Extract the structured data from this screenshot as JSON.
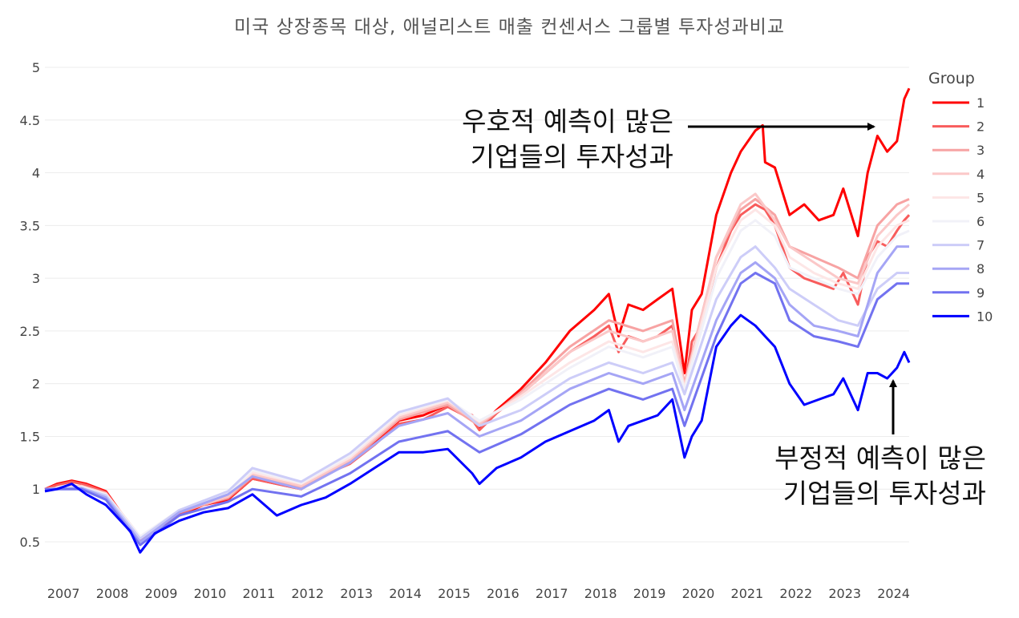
{
  "chart_data": {
    "type": "line",
    "title": "미국 상장종목 대상, 애널리스트 매출 컨센서스 그룹별 투자성과비교",
    "xlabel": "",
    "ylabel": "",
    "xlim": [
      2006.75,
      2024.45
    ],
    "ylim": [
      0.3,
      5.0
    ],
    "yticks": [
      "0.5",
      "1",
      "1.5",
      "2",
      "2.5",
      "3",
      "3.5",
      "4",
      "4.5",
      "5"
    ],
    "xticks": [
      "2007",
      "2008",
      "2009",
      "2010",
      "2011",
      "2012",
      "2013",
      "2014",
      "2015",
      "2016",
      "2017",
      "2018",
      "2019",
      "2020",
      "2021",
      "2022",
      "2023",
      "2024"
    ],
    "grid": true,
    "legend": {
      "title": "Group",
      "placement": "right"
    },
    "series": [
      {
        "name": "1",
        "color": "#ff0000",
        "x": [
          2006.75,
          2007.0,
          2007.3,
          2007.6,
          2008.0,
          2008.5,
          2008.7,
          2009.0,
          2009.5,
          2010.0,
          2010.5,
          2011.0,
          2011.5,
          2012.0,
          2012.5,
          2013.0,
          2013.5,
          2014.0,
          2014.5,
          2015.0,
          2015.5,
          2015.65,
          2016.0,
          2016.5,
          2017.0,
          2017.5,
          2018.0,
          2018.3,
          2018.5,
          2018.7,
          2019.0,
          2019.3,
          2019.6,
          2019.85,
          2020.0,
          2020.2,
          2020.5,
          2020.8,
          2021.0,
          2021.3,
          2021.45,
          2021.5,
          2021.7,
          2022.0,
          2022.3,
          2022.6,
          2022.9,
          2023.1,
          2023.4,
          2023.6,
          2023.8,
          2024.0,
          2024.2,
          2024.35,
          2024.45
        ],
        "y": [
          1.0,
          1.05,
          1.08,
          1.05,
          0.98,
          0.65,
          0.52,
          0.62,
          0.75,
          0.85,
          0.9,
          1.1,
          1.05,
          1.0,
          1.15,
          1.25,
          1.45,
          1.65,
          1.7,
          1.8,
          1.7,
          1.58,
          1.75,
          1.95,
          2.2,
          2.5,
          2.7,
          2.85,
          2.45,
          2.75,
          2.7,
          2.8,
          2.9,
          2.1,
          2.7,
          2.85,
          3.6,
          4.0,
          4.2,
          4.4,
          4.45,
          4.1,
          4.05,
          3.6,
          3.7,
          3.55,
          3.6,
          3.85,
          3.4,
          4.0,
          4.35,
          4.2,
          4.3,
          4.7,
          4.8
        ]
      },
      {
        "name": "2",
        "color": "#f85c5c",
        "x": [
          2006.75,
          2007.0,
          2007.3,
          2007.6,
          2008.0,
          2008.5,
          2008.7,
          2009.0,
          2009.5,
          2010.0,
          2010.5,
          2011.0,
          2011.5,
          2012.0,
          2012.5,
          2013.0,
          2013.5,
          2014.0,
          2014.5,
          2015.0,
          2015.5,
          2015.65,
          2016.0,
          2016.5,
          2017.0,
          2017.5,
          2018.0,
          2018.3,
          2018.5,
          2018.7,
          2019.0,
          2019.3,
          2019.6,
          2019.85,
          2020.0,
          2020.2,
          2020.5,
          2020.8,
          2021.0,
          2021.3,
          2021.5,
          2021.7,
          2022.0,
          2022.3,
          2022.6,
          2022.9,
          2023.1,
          2023.4,
          2023.6,
          2023.8,
          2024.0,
          2024.2,
          2024.35,
          2024.45
        ],
        "y": [
          1.0,
          1.04,
          1.07,
          1.04,
          0.97,
          0.65,
          0.53,
          0.63,
          0.76,
          0.86,
          0.91,
          1.1,
          1.05,
          1.0,
          1.14,
          1.24,
          1.42,
          1.62,
          1.66,
          1.78,
          1.66,
          1.56,
          1.72,
          1.9,
          2.1,
          2.3,
          2.45,
          2.55,
          2.3,
          2.45,
          2.4,
          2.45,
          2.55,
          1.95,
          2.4,
          2.55,
          3.1,
          3.45,
          3.6,
          3.7,
          3.65,
          3.5,
          3.1,
          3.0,
          2.95,
          2.9,
          3.05,
          2.75,
          3.2,
          3.35,
          3.3,
          3.45,
          3.55,
          3.6
        ]
      },
      {
        "name": "3",
        "color": "#f7a3a3",
        "x": [
          2006.75,
          2007.5,
          2008.0,
          2008.7,
          2009.5,
          2010.5,
          2011.0,
          2012.0,
          2013.0,
          2014.0,
          2015.0,
          2015.65,
          2016.5,
          2017.5,
          2018.3,
          2019.0,
          2019.6,
          2019.85,
          2020.5,
          2021.0,
          2021.3,
          2021.7,
          2022.0,
          2022.5,
          2023.0,
          2023.4,
          2023.8,
          2024.2,
          2024.45
        ],
        "y": [
          1.0,
          1.03,
          0.96,
          0.54,
          0.78,
          0.92,
          1.12,
          1.02,
          1.26,
          1.66,
          1.8,
          1.6,
          1.92,
          2.35,
          2.6,
          2.5,
          2.6,
          2.0,
          3.2,
          3.65,
          3.75,
          3.6,
          3.3,
          3.2,
          3.1,
          3.0,
          3.5,
          3.7,
          3.75
        ]
      },
      {
        "name": "4",
        "color": "#fbc8c8",
        "x": [
          2006.75,
          2007.5,
          2008.0,
          2008.7,
          2009.5,
          2010.5,
          2011.0,
          2012.0,
          2013.0,
          2014.0,
          2015.0,
          2015.65,
          2016.5,
          2017.5,
          2018.3,
          2019.0,
          2019.6,
          2019.85,
          2020.5,
          2021.0,
          2021.3,
          2021.7,
          2022.0,
          2022.5,
          2023.0,
          2023.4,
          2023.8,
          2024.2,
          2024.45
        ],
        "y": [
          1.0,
          1.03,
          0.96,
          0.55,
          0.79,
          0.93,
          1.14,
          1.03,
          1.28,
          1.68,
          1.82,
          1.62,
          1.9,
          2.3,
          2.5,
          2.4,
          2.5,
          1.98,
          3.2,
          3.7,
          3.8,
          3.55,
          3.3,
          3.15,
          3.0,
          2.95,
          3.4,
          3.6,
          3.7
        ]
      },
      {
        "name": "5",
        "color": "#fde6e6",
        "x": [
          2006.75,
          2007.5,
          2008.0,
          2008.7,
          2009.5,
          2010.5,
          2011.0,
          2012.0,
          2013.0,
          2014.0,
          2015.0,
          2015.65,
          2016.5,
          2017.5,
          2018.3,
          2019.0,
          2019.6,
          2019.85,
          2020.5,
          2021.0,
          2021.3,
          2021.7,
          2022.0,
          2022.5,
          2023.0,
          2023.4,
          2023.8,
          2024.2,
          2024.45
        ],
        "y": [
          1.0,
          1.02,
          0.95,
          0.55,
          0.8,
          0.95,
          1.16,
          1.05,
          1.3,
          1.7,
          1.84,
          1.64,
          1.88,
          2.2,
          2.4,
          2.3,
          2.4,
          1.96,
          3.1,
          3.55,
          3.65,
          3.5,
          3.2,
          3.05,
          2.95,
          2.9,
          3.3,
          3.5,
          3.55
        ]
      },
      {
        "name": "6",
        "color": "#f1f1f8",
        "x": [
          2006.75,
          2007.5,
          2008.0,
          2008.7,
          2009.5,
          2010.5,
          2011.0,
          2012.0,
          2013.0,
          2014.0,
          2015.0,
          2015.65,
          2016.5,
          2017.5,
          2018.3,
          2019.0,
          2019.6,
          2019.85,
          2020.5,
          2021.0,
          2021.3,
          2021.7,
          2022.0,
          2022.5,
          2023.0,
          2023.4,
          2023.8,
          2024.2,
          2024.45
        ],
        "y": [
          1.0,
          1.02,
          0.95,
          0.55,
          0.8,
          0.96,
          1.18,
          1.06,
          1.32,
          1.72,
          1.85,
          1.65,
          1.85,
          2.15,
          2.35,
          2.25,
          2.35,
          1.94,
          3.0,
          3.45,
          3.55,
          3.4,
          3.1,
          3.0,
          2.9,
          2.85,
          3.2,
          3.4,
          3.45
        ]
      },
      {
        "name": "7",
        "color": "#cdcdf8",
        "x": [
          2006.75,
          2007.5,
          2008.0,
          2008.7,
          2009.5,
          2010.5,
          2011.0,
          2012.0,
          2013.0,
          2014.0,
          2015.0,
          2015.65,
          2016.5,
          2017.5,
          2018.3,
          2019.0,
          2019.6,
          2019.85,
          2020.5,
          2021.0,
          2021.3,
          2021.7,
          2022.0,
          2022.5,
          2023.0,
          2023.4,
          2023.8,
          2024.2,
          2024.45
        ],
        "y": [
          1.0,
          1.01,
          0.94,
          0.53,
          0.8,
          0.98,
          1.2,
          1.07,
          1.34,
          1.73,
          1.86,
          1.6,
          1.75,
          2.05,
          2.2,
          2.1,
          2.2,
          1.9,
          2.8,
          3.2,
          3.3,
          3.1,
          2.9,
          2.75,
          2.6,
          2.55,
          2.9,
          3.05,
          3.05
        ]
      },
      {
        "name": "8",
        "color": "#a5a5f5",
        "x": [
          2006.75,
          2007.5,
          2008.0,
          2008.7,
          2009.5,
          2010.5,
          2011.0,
          2012.0,
          2013.0,
          2014.0,
          2015.0,
          2015.65,
          2016.5,
          2017.5,
          2018.3,
          2019.0,
          2019.6,
          2019.85,
          2020.5,
          2021.0,
          2021.3,
          2021.7,
          2022.0,
          2022.5,
          2023.0,
          2023.4,
          2023.8,
          2024.2,
          2024.45
        ],
        "y": [
          1.0,
          1.01,
          0.92,
          0.5,
          0.78,
          0.95,
          1.12,
          1.0,
          1.25,
          1.6,
          1.72,
          1.5,
          1.65,
          1.95,
          2.1,
          2.0,
          2.1,
          1.75,
          2.6,
          3.05,
          3.15,
          3.0,
          2.75,
          2.55,
          2.5,
          2.45,
          3.05,
          3.3,
          3.3
        ]
      },
      {
        "name": "9",
        "color": "#7272f0",
        "x": [
          2006.75,
          2007.5,
          2008.0,
          2008.7,
          2009.5,
          2010.5,
          2011.0,
          2012.0,
          2013.0,
          2014.0,
          2015.0,
          2015.65,
          2016.5,
          2017.5,
          2018.3,
          2019.0,
          2019.6,
          2019.85,
          2020.5,
          2021.0,
          2021.3,
          2021.7,
          2022.0,
          2022.5,
          2023.0,
          2023.4,
          2023.8,
          2024.2,
          2024.45
        ],
        "y": [
          1.0,
          1.0,
          0.9,
          0.47,
          0.75,
          0.88,
          1.0,
          0.93,
          1.15,
          1.45,
          1.55,
          1.35,
          1.52,
          1.8,
          1.95,
          1.85,
          1.95,
          1.6,
          2.45,
          2.95,
          3.05,
          2.95,
          2.6,
          2.45,
          2.4,
          2.35,
          2.8,
          2.95,
          2.95
        ]
      },
      {
        "name": "10",
        "color": "#0000ff",
        "x": [
          2006.75,
          2007.0,
          2007.3,
          2007.6,
          2008.0,
          2008.5,
          2008.7,
          2009.0,
          2009.5,
          2010.0,
          2010.5,
          2011.0,
          2011.5,
          2012.0,
          2012.5,
          2013.0,
          2013.5,
          2014.0,
          2014.5,
          2015.0,
          2015.5,
          2015.65,
          2016.0,
          2016.5,
          2017.0,
          2017.5,
          2018.0,
          2018.3,
          2018.5,
          2018.7,
          2019.0,
          2019.3,
          2019.6,
          2019.85,
          2020.0,
          2020.2,
          2020.5,
          2020.8,
          2021.0,
          2021.3,
          2021.5,
          2021.7,
          2022.0,
          2022.3,
          2022.6,
          2022.9,
          2023.1,
          2023.4,
          2023.6,
          2023.8,
          2024.0,
          2024.2,
          2024.35,
          2024.45
        ],
        "y": [
          0.98,
          1.0,
          1.05,
          0.95,
          0.85,
          0.6,
          0.4,
          0.58,
          0.7,
          0.78,
          0.82,
          0.95,
          0.75,
          0.85,
          0.92,
          1.05,
          1.2,
          1.35,
          1.35,
          1.38,
          1.15,
          1.05,
          1.2,
          1.3,
          1.45,
          1.55,
          1.65,
          1.75,
          1.45,
          1.6,
          1.65,
          1.7,
          1.85,
          1.3,
          1.5,
          1.65,
          2.35,
          2.55,
          2.65,
          2.55,
          2.45,
          2.35,
          2.0,
          1.8,
          1.85,
          1.9,
          2.05,
          1.75,
          2.1,
          2.1,
          2.05,
          2.15,
          2.3,
          2.2
        ]
      }
    ],
    "annotations": [
      {
        "lines": [
          "우호적 예측이 많은",
          "기업들의 투자성과"
        ]
      },
      {
        "lines": [
          "부정적 예측이 많은",
          "기업들의 투자성과"
        ]
      }
    ]
  }
}
